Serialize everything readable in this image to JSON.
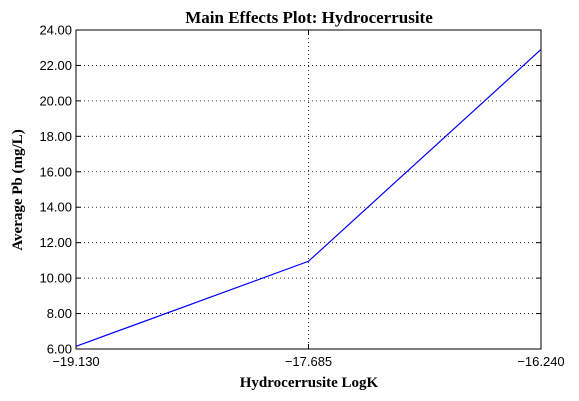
{
  "chart_data": {
    "type": "line",
    "title": "Main Effects Plot: Hydrocerrusite",
    "xlabel": "Hydrocerrusite LogK",
    "ylabel": "Average Pb (mg/L)",
    "x": [
      -19.13,
      -17.685,
      -16.24
    ],
    "xticks": [
      "−19.130",
      "−17.685",
      "−16.240"
    ],
    "xlim": [
      -19.13,
      -16.24
    ],
    "ylim": [
      6.0,
      24.0
    ],
    "yticks": [
      "6.00",
      "8.00",
      "10.00",
      "12.00",
      "14.00",
      "16.00",
      "18.00",
      "20.00",
      "22.00",
      "24.00"
    ],
    "ytick_values": [
      6,
      8,
      10,
      12,
      14,
      16,
      18,
      20,
      22,
      24
    ],
    "series": [
      {
        "values": [
          6.15,
          10.95,
          22.9
        ],
        "color": "#0000ff"
      }
    ],
    "grid": true
  }
}
